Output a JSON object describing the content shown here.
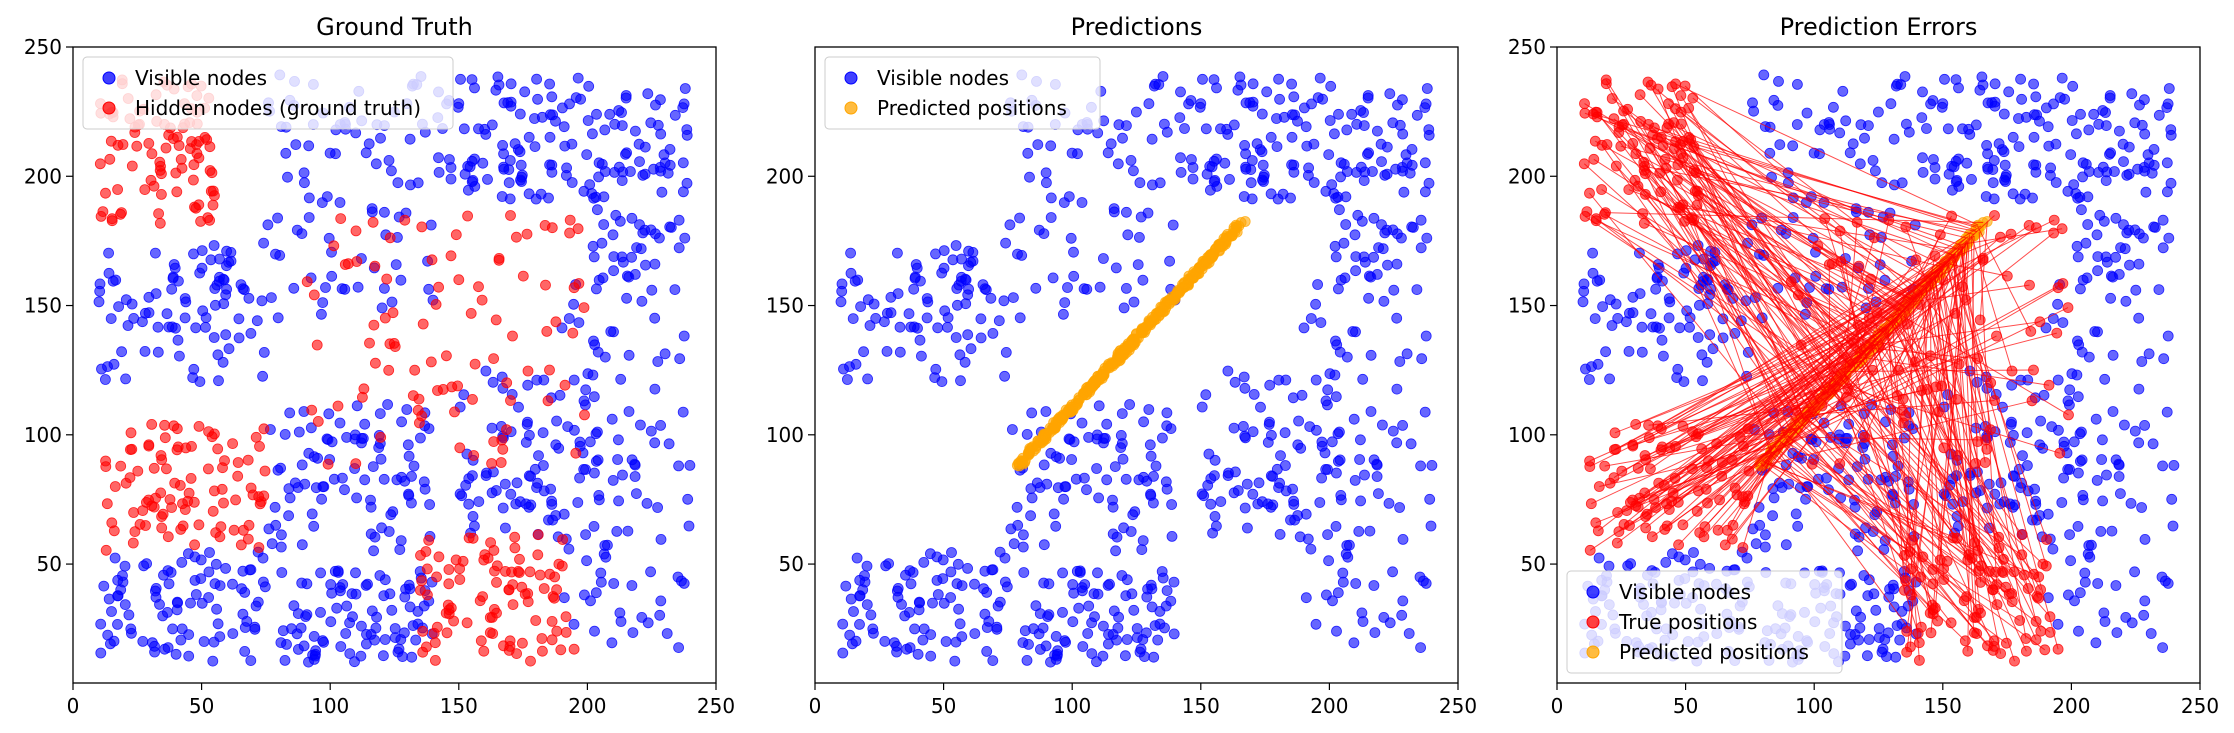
{
  "figure": {
    "style": {
      "visible_color": "#0000ff",
      "hidden_color": "#ff0000",
      "predicted_color": "#ffa500",
      "error_line_color": "#ff0000"
    }
  },
  "chart_data": [
    {
      "type": "scatter",
      "title": "Ground Truth",
      "xlabel": "",
      "ylabel": "",
      "xlim": [
        0,
        250
      ],
      "ylim": [
        4,
        250
      ],
      "x_ticks": [
        0,
        50,
        100,
        150,
        200,
        250
      ],
      "y_ticks": [
        50,
        100,
        150,
        200,
        250
      ],
      "grid": false,
      "legend_position": "top-left",
      "series": [
        {
          "name": "Visible nodes",
          "color": "#0000ff",
          "clusters": [
            {
              "x": [
                75,
                140
              ],
              "y": [
                145,
                240
              ]
            },
            {
              "x": [
                140,
                200
              ],
              "y": [
                190,
                240
              ]
            },
            {
              "x": [
                200,
                240
              ],
              "y": [
                160,
                235
              ]
            },
            {
              "x": [
                10,
                75
              ],
              "y": [
                120,
                175
              ]
            },
            {
              "x": [
                190,
                240
              ],
              "y": [
                12,
                165
              ]
            },
            {
              "x": [
                150,
                205
              ],
              "y": [
                60,
                125
              ]
            },
            {
              "x": [
                75,
                140
              ],
              "y": [
                55,
                112
              ]
            },
            {
              "x": [
                10,
                75
              ],
              "y": [
                12,
                55
              ]
            },
            {
              "x": [
                80,
                140
              ],
              "y": [
                12,
                50
              ]
            }
          ]
        },
        {
          "name": "Hidden nodes (ground truth)",
          "color": "#ff0000",
          "clusters": [
            {
              "x": [
                10,
                55
              ],
              "y": [
                180,
                238
              ]
            },
            {
              "x": [
                90,
                200
              ],
              "y": [
                88,
                185
              ]
            },
            {
              "x": [
                10,
                75
              ],
              "y": [
                55,
                105
              ]
            },
            {
              "x": [
                135,
                195
              ],
              "y": [
                12,
                62
              ]
            }
          ]
        }
      ]
    },
    {
      "type": "scatter",
      "title": "Predictions",
      "xlabel": "",
      "ylabel": "",
      "xlim": [
        0,
        250
      ],
      "ylim": [
        4,
        250
      ],
      "x_ticks": [
        0,
        50,
        100,
        150,
        200,
        250
      ],
      "y_ticks": [
        50,
        100,
        150,
        200
      ],
      "grid": false,
      "legend_position": "top-left",
      "series": [
        {
          "name": "Visible nodes",
          "color": "#0000ff",
          "clusters": [
            {
              "x": [
                75,
                140
              ],
              "y": [
                145,
                240
              ]
            },
            {
              "x": [
                140,
                200
              ],
              "y": [
                190,
                240
              ]
            },
            {
              "x": [
                200,
                240
              ],
              "y": [
                160,
                235
              ]
            },
            {
              "x": [
                10,
                75
              ],
              "y": [
                120,
                175
              ]
            },
            {
              "x": [
                190,
                240
              ],
              "y": [
                12,
                165
              ]
            },
            {
              "x": [
                150,
                205
              ],
              "y": [
                60,
                125
              ]
            },
            {
              "x": [
                75,
                140
              ],
              "y": [
                55,
                112
              ]
            },
            {
              "x": [
                10,
                75
              ],
              "y": [
                12,
                55
              ]
            },
            {
              "x": [
                80,
                140
              ],
              "y": [
                12,
                50
              ]
            }
          ]
        },
        {
          "name": "Predicted positions",
          "color": "#ffa500",
          "line_segment": {
            "x": [
              78,
              167
            ],
            "y": [
              87,
              183
            ]
          }
        }
      ]
    },
    {
      "type": "scatter",
      "title": "Prediction Errors",
      "xlabel": "",
      "ylabel": "",
      "xlim": [
        0,
        250
      ],
      "ylim": [
        4,
        250
      ],
      "x_ticks": [
        0,
        50,
        100,
        150,
        200,
        250
      ],
      "y_ticks": [
        50,
        100,
        150,
        200,
        250
      ],
      "grid": false,
      "legend_position": "bottom-left",
      "series": [
        {
          "name": "Visible nodes",
          "color": "#0000ff"
        },
        {
          "name": "True positions",
          "color": "#ff0000"
        },
        {
          "name": "Predicted positions",
          "color": "#ffa500"
        }
      ],
      "error_lines": "each true (hidden) position connected to its predicted position"
    }
  ]
}
